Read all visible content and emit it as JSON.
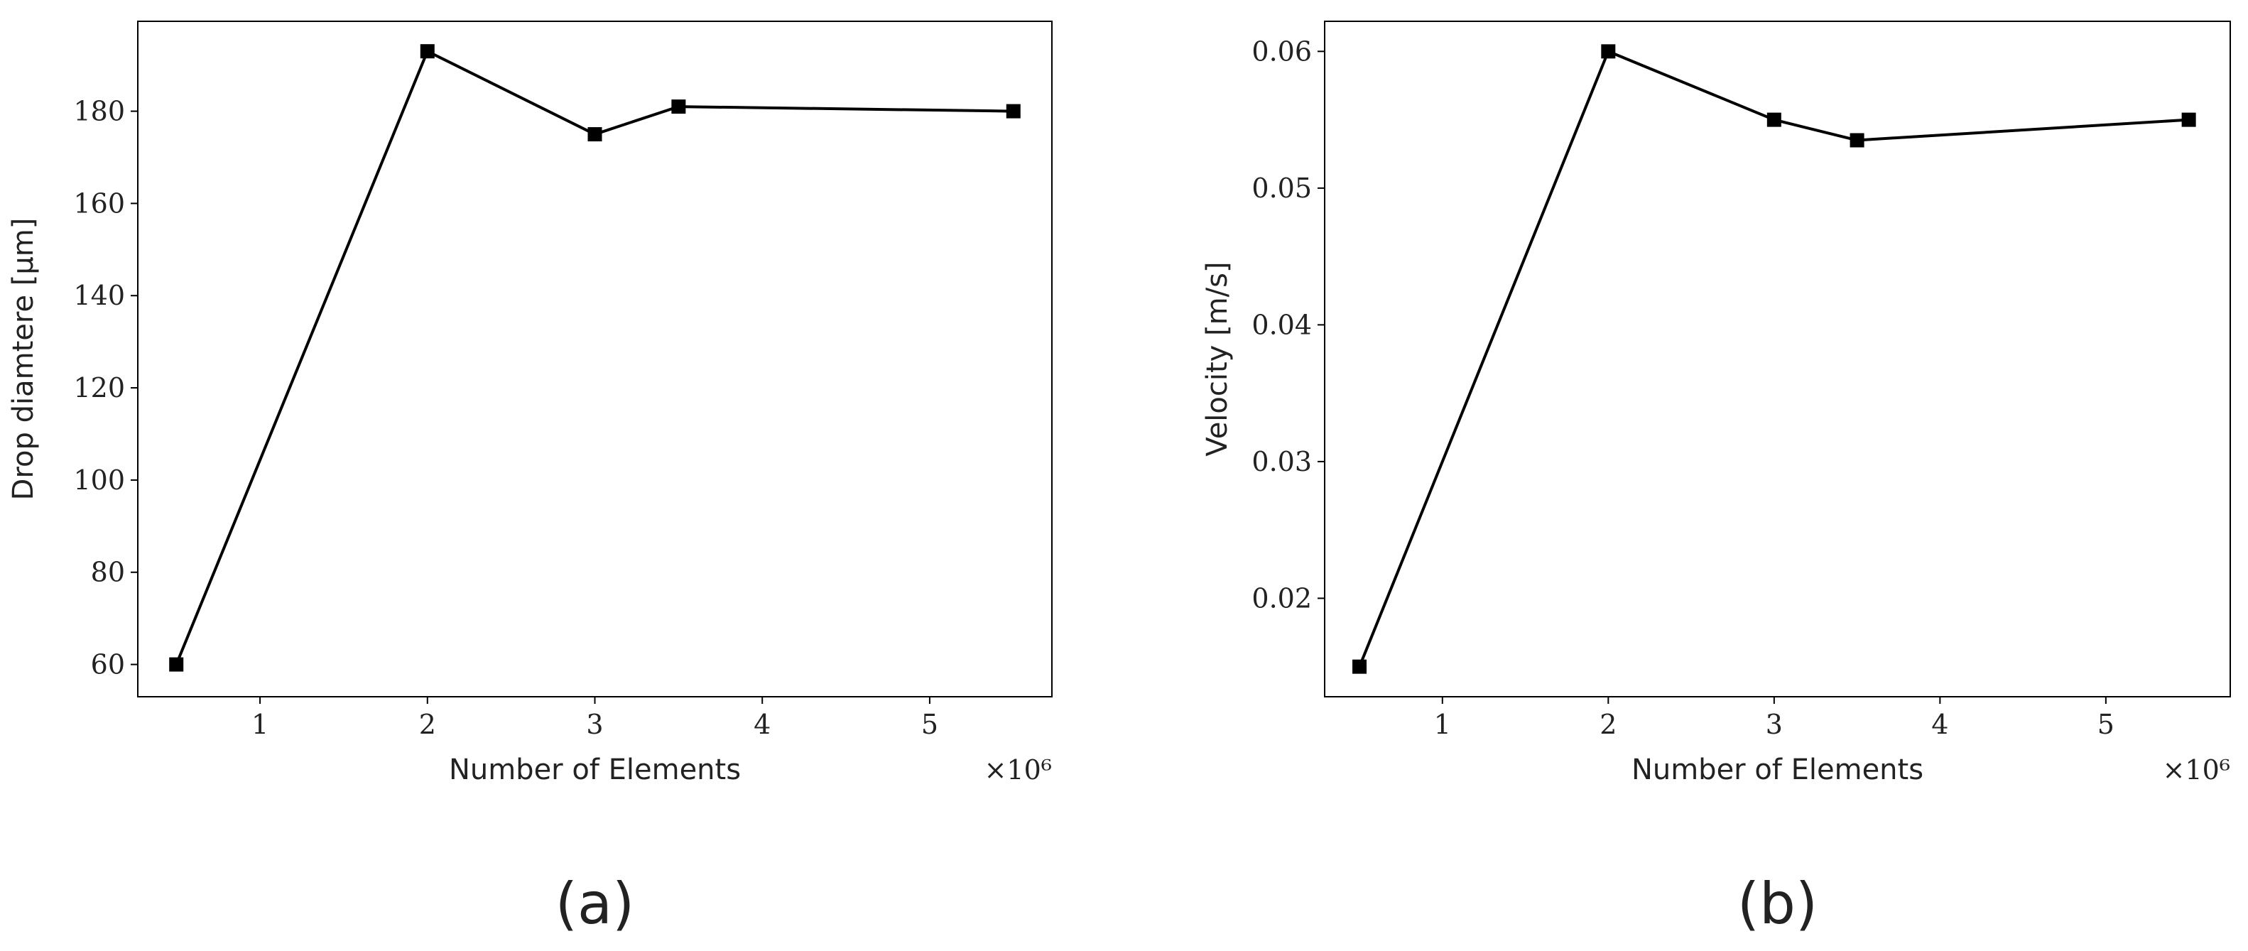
{
  "chart_data": [
    {
      "type": "line",
      "panel_label": "(a)",
      "x_label": "Number of Elements",
      "x_offset_label": "×10⁶",
      "y_label": "Drop diamtere [μm]",
      "x": [
        0.5,
        2,
        3,
        3.5,
        5.5
      ],
      "values": [
        60,
        193,
        175,
        181,
        180
      ],
      "color": "#000000",
      "marker": "square",
      "xlim": [
        0.27,
        5.73
      ],
      "xticks": [
        1,
        2,
        3,
        4,
        5
      ],
      "ylim": [
        53,
        199.5
      ],
      "yticks": [
        60,
        80,
        100,
        120,
        140,
        160,
        180
      ]
    },
    {
      "type": "line",
      "panel_label": "(b)",
      "x_label": "Number of Elements",
      "x_offset_label": "×10⁶",
      "y_label": "Velocity [m/s]",
      "x": [
        0.5,
        2,
        3,
        3.5,
        5.5
      ],
      "values": [
        0.015,
        0.06,
        0.055,
        0.0535,
        0.055
      ],
      "color": "#000000",
      "marker": "square",
      "xlim": [
        0.29,
        5.75
      ],
      "xticks": [
        1,
        2,
        3,
        4,
        5
      ],
      "ylim": [
        0.0128,
        0.0622
      ],
      "yticks": [
        0.02,
        0.03,
        0.04,
        0.05,
        0.06
      ]
    }
  ]
}
